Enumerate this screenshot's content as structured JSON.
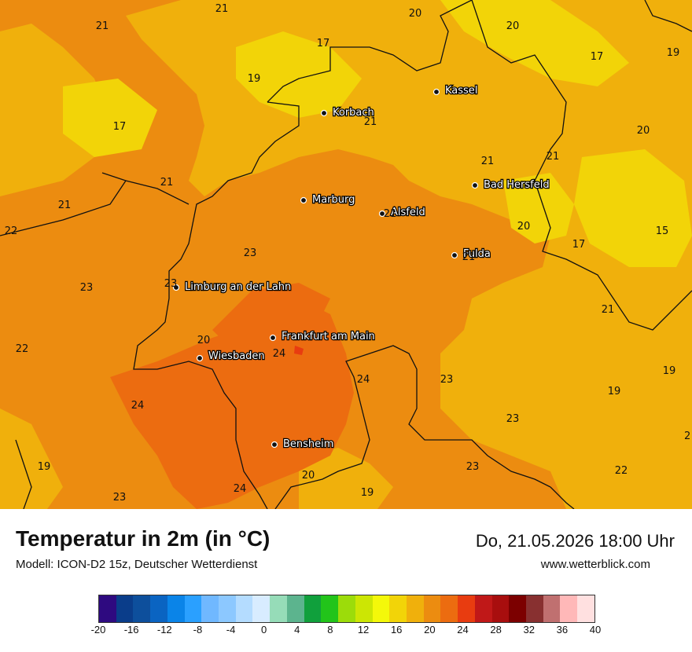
{
  "header": {
    "title": "Temperatur in 2m (in °C)",
    "model": "Modell: ICON-D2 15z, Deutscher Wetterdienst",
    "datetime": "Do, 21.05.2026 18:00 Uhr",
    "website": "www.wetterblick.com"
  },
  "cities": [
    {
      "name": "Kassel"
    },
    {
      "name": "Korbach"
    },
    {
      "name": "Bad Hersfeld"
    },
    {
      "name": "Marburg"
    },
    {
      "name": "Alsfeld"
    },
    {
      "name": "Fulda"
    },
    {
      "name": "Limburg an der Lahn"
    },
    {
      "name": "Frankfurt am Main"
    },
    {
      "name": "Wiesbaden"
    },
    {
      "name": "Bensheim"
    }
  ],
  "values": [
    "21",
    "20",
    "21",
    "20",
    "17",
    "17",
    "19",
    "19",
    "17",
    "21",
    "21",
    "20",
    "21",
    "21",
    "21",
    "22",
    "23",
    "20",
    "15",
    "17",
    "23",
    "23",
    "22",
    "20",
    "24",
    "21",
    "24",
    "23",
    "19",
    "24",
    "19",
    "23",
    "2",
    "23",
    "20",
    "22",
    "19",
    "24",
    "19"
  ],
  "legend": {
    "colors": [
      "#2e0a80",
      "#0a3d8a",
      "#0d4f9c",
      "#0a64c2",
      "#0a84e8",
      "#2aa0ff",
      "#70b8ff",
      "#8cc8ff",
      "#b4dcff",
      "#d8ecff",
      "#96dcb8",
      "#5cb48e",
      "#10a03c",
      "#22c41a",
      "#9cdc0a",
      "#cce604",
      "#f4f80a",
      "#f2d408",
      "#f0b00c",
      "#ec8c10",
      "#ec6c10",
      "#e83c10",
      "#c01818",
      "#a80e0e",
      "#7c0000",
      "#883030",
      "#c07070",
      "#ffb8b8",
      "#ffe0e0"
    ],
    "ticks": [
      "-20",
      "-16",
      "-12",
      "-8",
      "-4",
      "0",
      "4",
      "8",
      "12",
      "16",
      "20",
      "24",
      "28",
      "32",
      "36",
      "40"
    ]
  }
}
